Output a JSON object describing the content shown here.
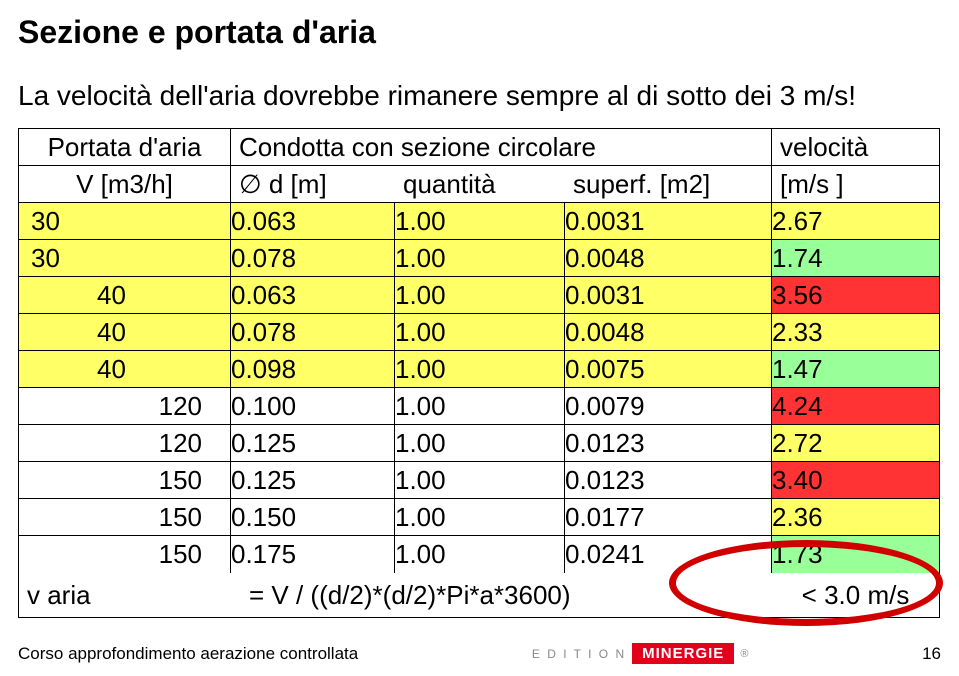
{
  "title": "Sezione e portata d'aria",
  "subtitle": "La velocità dell'aria dovrebbe rimanere sempre al di sotto dei 3 m/s!",
  "header": {
    "col1_line1": "Portata d'aria",
    "col1_line2": "V   [m3/h]",
    "merge_line1": "Condotta con sezione circolare",
    "col2_line2": "∅  d [m]",
    "col3_line2": "quantità",
    "col4_line2": "superf.   [m2]",
    "col5_line1": "velocità",
    "col5_line2": "[m/s        ]"
  },
  "rows": [
    {
      "v": "30",
      "d": "0.063",
      "q": "1.00",
      "s": "0.0031",
      "vel": "2.67",
      "vclass": "hi-y",
      "rowclass": "hi-y",
      "align": "left",
      "pad": 12
    },
    {
      "v": "30",
      "d": "0.078",
      "q": "1.00",
      "s": "0.0048",
      "vel": "1.74",
      "vclass": "hi-g",
      "rowclass": "hi-y",
      "align": "left",
      "pad": 12
    },
    {
      "v": "40",
      "d": "0.063",
      "q": "1.00",
      "s": "0.0031",
      "vel": "3.56",
      "vclass": "hi-r",
      "rowclass": "hi-y",
      "align": "left",
      "pad": 78
    },
    {
      "v": "40",
      "d": "0.078",
      "q": "1.00",
      "s": "0.0048",
      "vel": "2.33",
      "vclass": "hi-y",
      "rowclass": "hi-y",
      "align": "left",
      "pad": 78
    },
    {
      "v": "40",
      "d": "0.098",
      "q": "1.00",
      "s": "0.0075",
      "vel": "1.47",
      "vclass": "hi-g",
      "rowclass": "hi-y",
      "align": "left",
      "pad": 78
    },
    {
      "v": "120",
      "d": "0.100",
      "q": "1.00",
      "s": "0.0079",
      "vel": "4.24",
      "vclass": "hi-r",
      "rowclass": "",
      "align": "right",
      "pad": 0
    },
    {
      "v": "120",
      "d": "0.125",
      "q": "1.00",
      "s": "0.0123",
      "vel": "2.72",
      "vclass": "hi-y",
      "rowclass": "",
      "align": "right",
      "pad": 0
    },
    {
      "v": "150",
      "d": "0.125",
      "q": "1.00",
      "s": "0.0123",
      "vel": "3.40",
      "vclass": "hi-r",
      "rowclass": "",
      "align": "right",
      "pad": 0
    },
    {
      "v": "150",
      "d": "0.150",
      "q": "1.00",
      "s": "0.0177",
      "vel": "2.36",
      "vclass": "hi-y",
      "rowclass": "",
      "align": "right",
      "pad": 0
    },
    {
      "v": "150",
      "d": "0.175",
      "q": "1.00",
      "s": "0.0241",
      "vel": "1.73",
      "vclass": "hi-g",
      "rowclass": "",
      "align": "right",
      "pad": 0
    }
  ],
  "formula": {
    "label": "v aria",
    "eq": "= V  / ((d/2)*(d/2)*Pi*a*3600)",
    "rule": "< 3.0 m/s"
  },
  "footer": {
    "left": "Corso approfondimento aerazione controllata",
    "brand_small": "E D I T I O N",
    "brand": "MINERGIE",
    "reg": "®",
    "page": "16"
  },
  "colors": {
    "yellow": "#ffff66",
    "red": "#ff3333",
    "green": "#99ff99",
    "ellipse": "#d00000",
    "brandred": "#e2001a"
  }
}
